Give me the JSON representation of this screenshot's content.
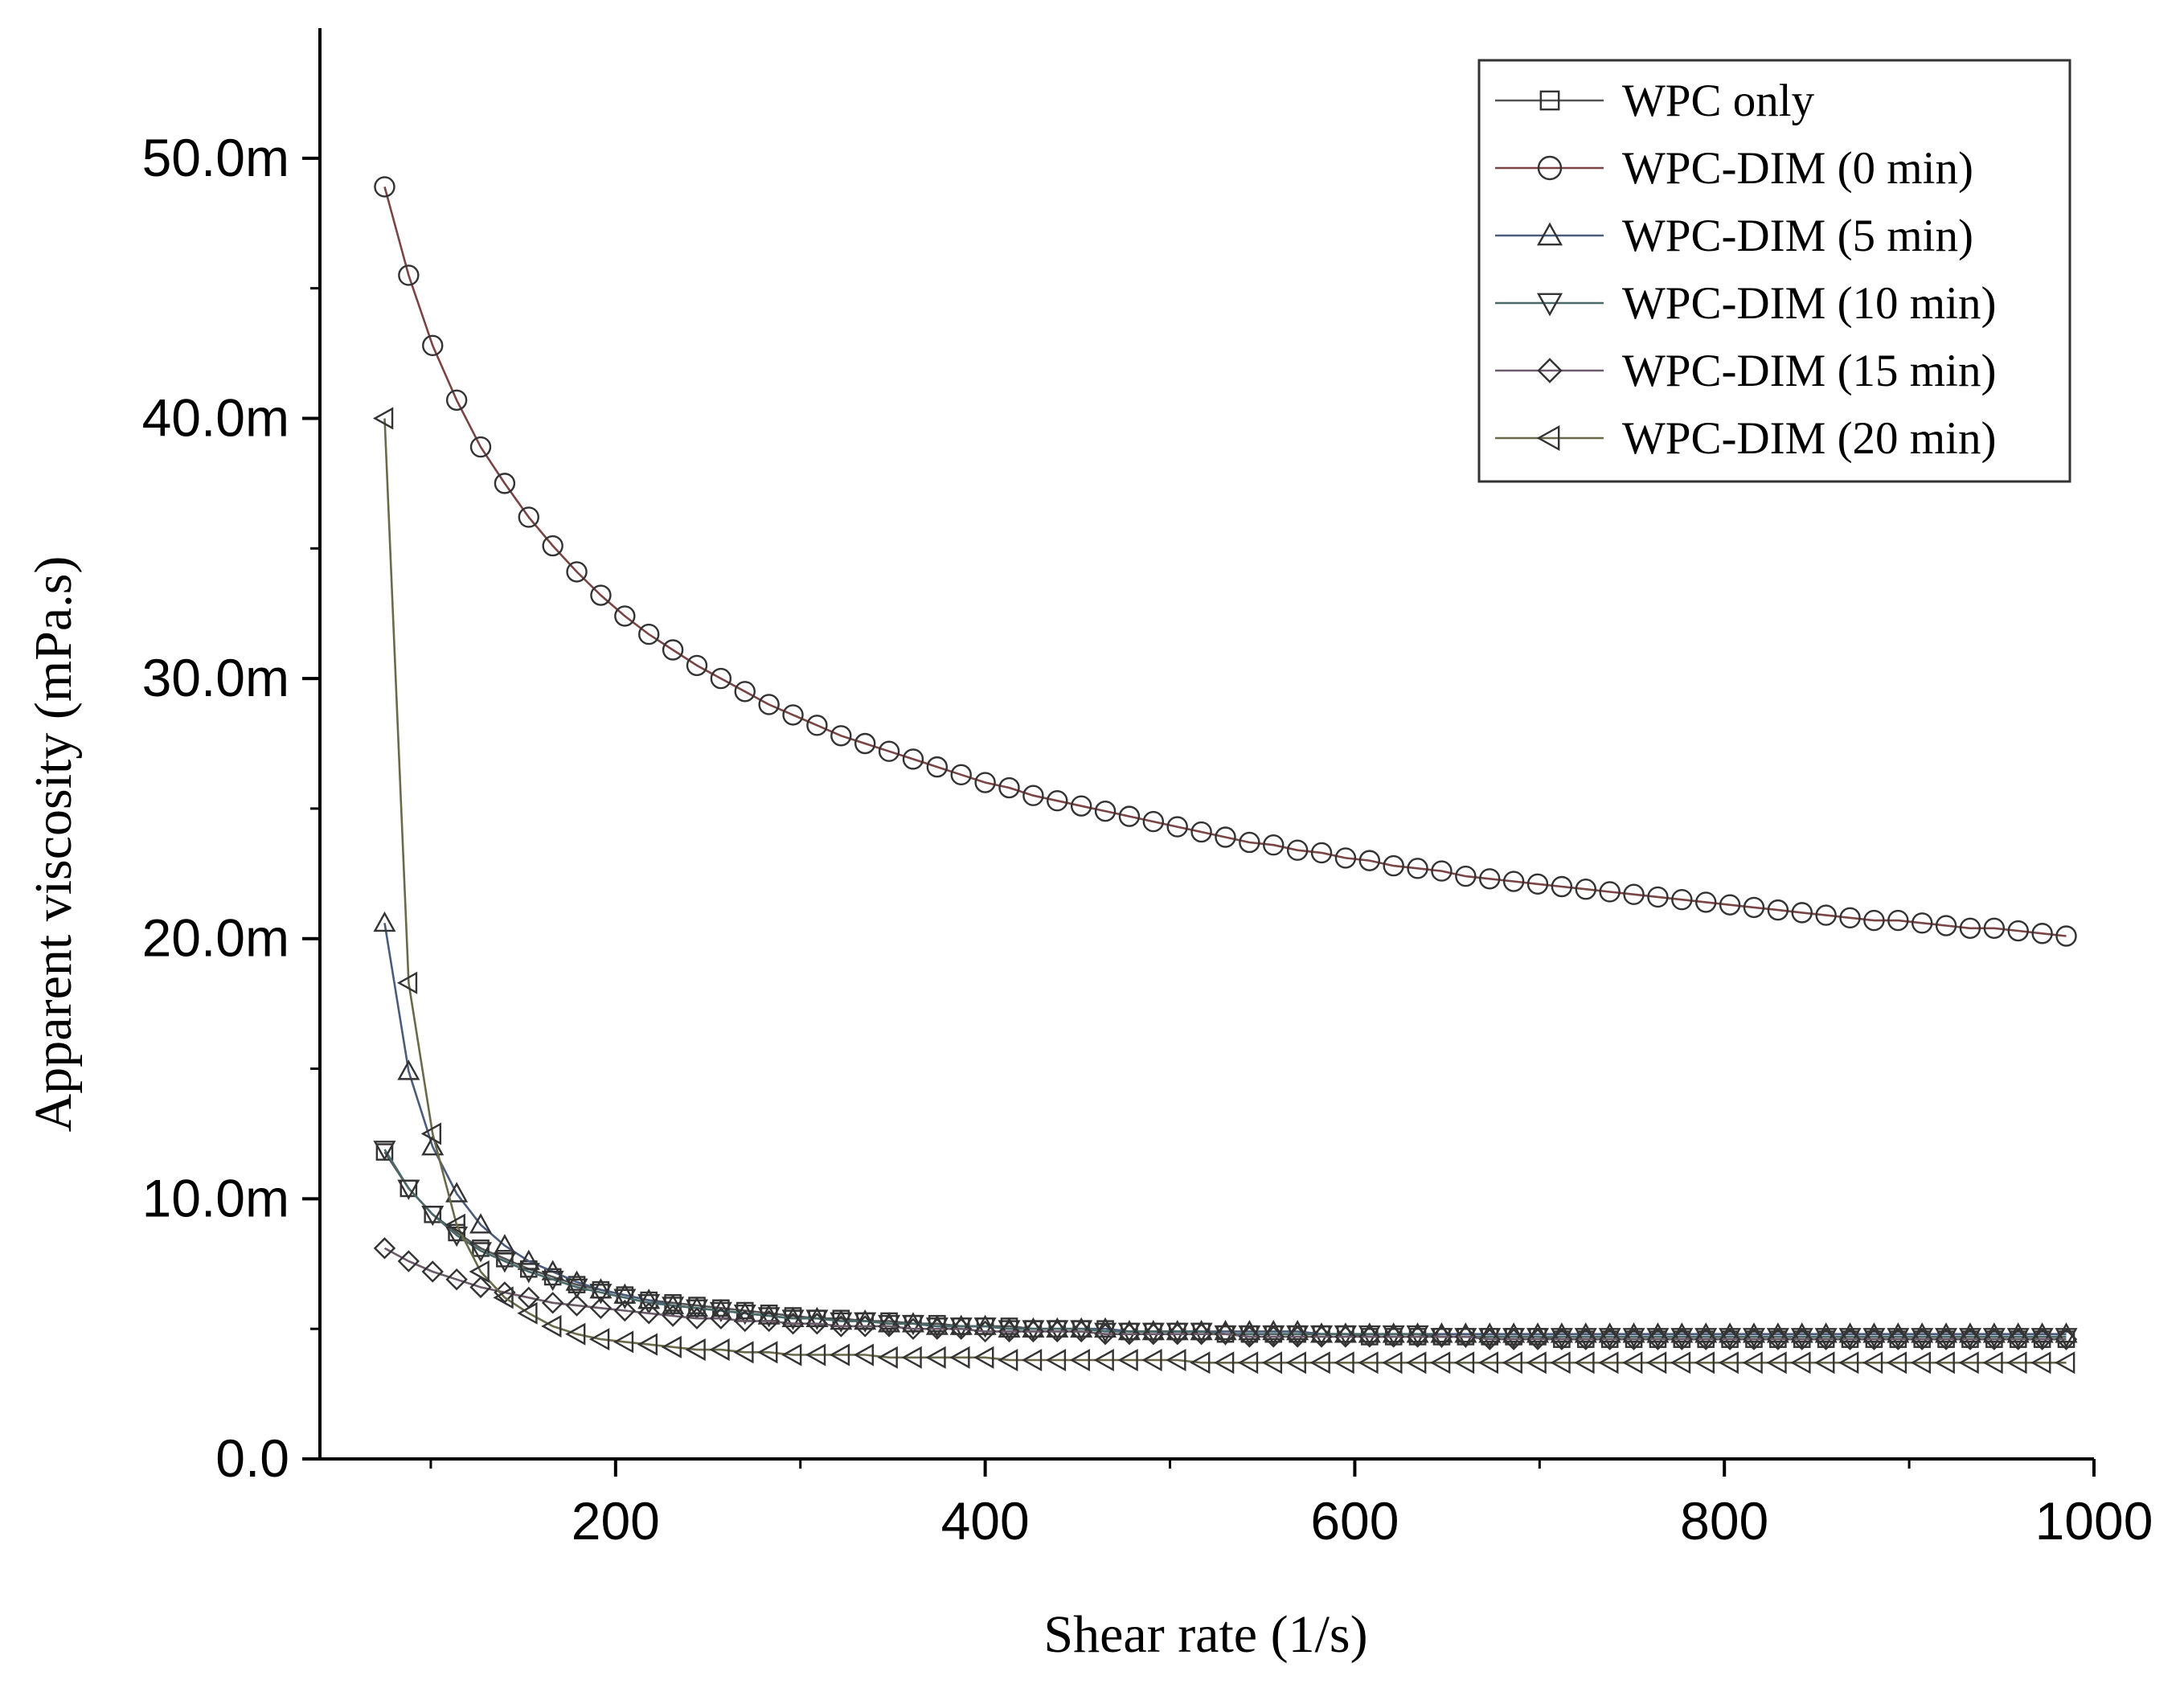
{
  "chart_data": {
    "type": "line",
    "title": "",
    "xlabel": "Shear rate (1/s)",
    "ylabel": "Apparent viscosity (mPa.s)",
    "xlim": [
      40,
      1000
    ],
    "ylim": [
      0,
      55
    ],
    "x_ticks": [
      200,
      400,
      600,
      800,
      1000
    ],
    "x_tick_labels": [
      "200",
      "400",
      "600",
      "800",
      "1000"
    ],
    "y_ticks": [
      0,
      10,
      20,
      30,
      40,
      50
    ],
    "y_tick_labels": [
      "0.0",
      "10.0m",
      "20.0m",
      "30.0m",
      "40.0m",
      "50.0m"
    ],
    "grid": false,
    "legend_position": "top-right",
    "x": [
      75,
      88,
      101,
      114,
      127,
      140,
      153,
      166,
      179,
      192,
      205,
      218,
      231,
      244,
      257,
      270,
      283,
      296,
      309,
      322,
      335,
      348,
      361,
      374,
      387,
      400,
      413,
      426,
      439,
      452,
      465,
      478,
      491,
      504,
      517,
      530,
      543,
      556,
      569,
      582,
      595,
      608,
      621,
      634,
      647,
      660,
      673,
      686,
      699,
      712,
      725,
      738,
      751,
      764,
      777,
      790,
      803,
      816,
      829,
      842,
      855,
      868,
      881,
      894,
      907,
      920,
      933,
      946,
      959,
      972,
      985
    ],
    "series": [
      {
        "name": "WPC only",
        "marker": "square",
        "color": "#555555",
        "values": [
          11.8,
          10.4,
          9.4,
          8.7,
          8.1,
          7.7,
          7.3,
          7.0,
          6.7,
          6.5,
          6.3,
          6.1,
          6.0,
          5.9,
          5.8,
          5.7,
          5.6,
          5.5,
          5.4,
          5.4,
          5.3,
          5.3,
          5.2,
          5.2,
          5.1,
          5.1,
          5.1,
          5.0,
          5.0,
          5.0,
          5.0,
          4.9,
          4.9,
          4.9,
          4.9,
          4.8,
          4.8,
          4.8,
          4.8,
          4.8,
          4.8,
          4.7,
          4.7,
          4.7,
          4.7,
          4.7,
          4.7,
          4.7,
          4.7,
          4.6,
          4.6,
          4.6,
          4.6,
          4.6,
          4.6,
          4.6,
          4.6,
          4.6,
          4.6,
          4.6,
          4.6,
          4.6,
          4.6,
          4.6,
          4.6,
          4.6,
          4.6,
          4.6,
          4.6,
          4.6,
          4.6
        ]
      },
      {
        "name": "WPC-DIM (0 min)",
        "marker": "circle",
        "color": "#7a4444",
        "values": [
          48.9,
          45.5,
          42.8,
          40.7,
          38.9,
          37.5,
          36.2,
          35.1,
          34.1,
          33.2,
          32.4,
          31.7,
          31.1,
          30.5,
          30.0,
          29.5,
          29.0,
          28.6,
          28.2,
          27.8,
          27.5,
          27.2,
          26.9,
          26.6,
          26.3,
          26.0,
          25.8,
          25.5,
          25.3,
          25.1,
          24.9,
          24.7,
          24.5,
          24.3,
          24.1,
          23.9,
          23.7,
          23.6,
          23.4,
          23.3,
          23.1,
          23.0,
          22.8,
          22.7,
          22.6,
          22.4,
          22.3,
          22.2,
          22.1,
          22.0,
          21.9,
          21.8,
          21.7,
          21.6,
          21.5,
          21.4,
          21.3,
          21.2,
          21.1,
          21.0,
          20.9,
          20.8,
          20.7,
          20.7,
          20.6,
          20.5,
          20.4,
          20.4,
          20.3,
          20.2,
          20.1
        ]
      },
      {
        "name": "WPC-DIM (5 min)",
        "marker": "triangle-up",
        "color": "#4a5c7a",
        "values": [
          20.6,
          14.9,
          12.0,
          10.2,
          9.0,
          8.2,
          7.6,
          7.2,
          6.8,
          6.5,
          6.3,
          6.1,
          5.9,
          5.8,
          5.7,
          5.6,
          5.5,
          5.4,
          5.4,
          5.3,
          5.3,
          5.2,
          5.2,
          5.1,
          5.1,
          5.1,
          5.0,
          5.0,
          5.0,
          5.0,
          5.0,
          4.9,
          4.9,
          4.9,
          4.9,
          4.9,
          4.9,
          4.9,
          4.9,
          4.8,
          4.8,
          4.8,
          4.8,
          4.8,
          4.8,
          4.8,
          4.8,
          4.8,
          4.8,
          4.8,
          4.8,
          4.8,
          4.8,
          4.8,
          4.8,
          4.8,
          4.8,
          4.8,
          4.8,
          4.8,
          4.8,
          4.8,
          4.8,
          4.8,
          4.8,
          4.8,
          4.8,
          4.8,
          4.8,
          4.8,
          4.8
        ]
      },
      {
        "name": "WPC-DIM (10 min)",
        "marker": "triangle-down",
        "color": "#4a6a6a",
        "values": [
          11.9,
          10.4,
          9.4,
          8.6,
          8.0,
          7.6,
          7.2,
          6.9,
          6.6,
          6.4,
          6.2,
          6.0,
          5.9,
          5.8,
          5.7,
          5.6,
          5.5,
          5.4,
          5.4,
          5.3,
          5.3,
          5.2,
          5.2,
          5.1,
          5.1,
          5.1,
          5.0,
          5.0,
          5.0,
          5.0,
          4.9,
          4.9,
          4.9,
          4.9,
          4.9,
          4.8,
          4.8,
          4.8,
          4.8,
          4.8,
          4.8,
          4.8,
          4.8,
          4.8,
          4.7,
          4.7,
          4.7,
          4.7,
          4.7,
          4.7,
          4.7,
          4.7,
          4.7,
          4.7,
          4.7,
          4.7,
          4.7,
          4.7,
          4.7,
          4.7,
          4.7,
          4.7,
          4.7,
          4.7,
          4.7,
          4.7,
          4.7,
          4.7,
          4.7,
          4.7,
          4.7
        ]
      },
      {
        "name": "WPC-DIM (15 min)",
        "marker": "diamond",
        "color": "#6a5a6a",
        "values": [
          8.1,
          7.6,
          7.2,
          6.9,
          6.6,
          6.4,
          6.2,
          6.0,
          5.9,
          5.8,
          5.7,
          5.6,
          5.5,
          5.4,
          5.4,
          5.3,
          5.3,
          5.2,
          5.2,
          5.1,
          5.1,
          5.1,
          5.0,
          5.0,
          5.0,
          4.9,
          4.9,
          4.9,
          4.9,
          4.9,
          4.8,
          4.8,
          4.8,
          4.8,
          4.8,
          4.8,
          4.7,
          4.7,
          4.7,
          4.7,
          4.7,
          4.7,
          4.7,
          4.7,
          4.7,
          4.7,
          4.6,
          4.6,
          4.6,
          4.6,
          4.6,
          4.6,
          4.6,
          4.6,
          4.6,
          4.6,
          4.6,
          4.6,
          4.6,
          4.6,
          4.6,
          4.6,
          4.6,
          4.6,
          4.6,
          4.6,
          4.6,
          4.6,
          4.6,
          4.6,
          4.6
        ]
      },
      {
        "name": "WPC-DIM (20 min)",
        "marker": "triangle-left",
        "color": "#6a6a4a",
        "values": [
          40.0,
          18.3,
          12.5,
          9.0,
          7.2,
          6.2,
          5.6,
          5.1,
          4.8,
          4.6,
          4.5,
          4.4,
          4.3,
          4.2,
          4.2,
          4.1,
          4.1,
          4.0,
          4.0,
          4.0,
          4.0,
          3.9,
          3.9,
          3.9,
          3.9,
          3.9,
          3.8,
          3.8,
          3.8,
          3.8,
          3.8,
          3.8,
          3.8,
          3.8,
          3.7,
          3.7,
          3.7,
          3.7,
          3.7,
          3.7,
          3.7,
          3.7,
          3.7,
          3.7,
          3.7,
          3.7,
          3.7,
          3.7,
          3.7,
          3.7,
          3.7,
          3.7,
          3.7,
          3.7,
          3.7,
          3.7,
          3.7,
          3.7,
          3.7,
          3.7,
          3.7,
          3.7,
          3.7,
          3.7,
          3.7,
          3.7,
          3.7,
          3.7,
          3.7,
          3.7,
          3.7
        ]
      }
    ]
  }
}
